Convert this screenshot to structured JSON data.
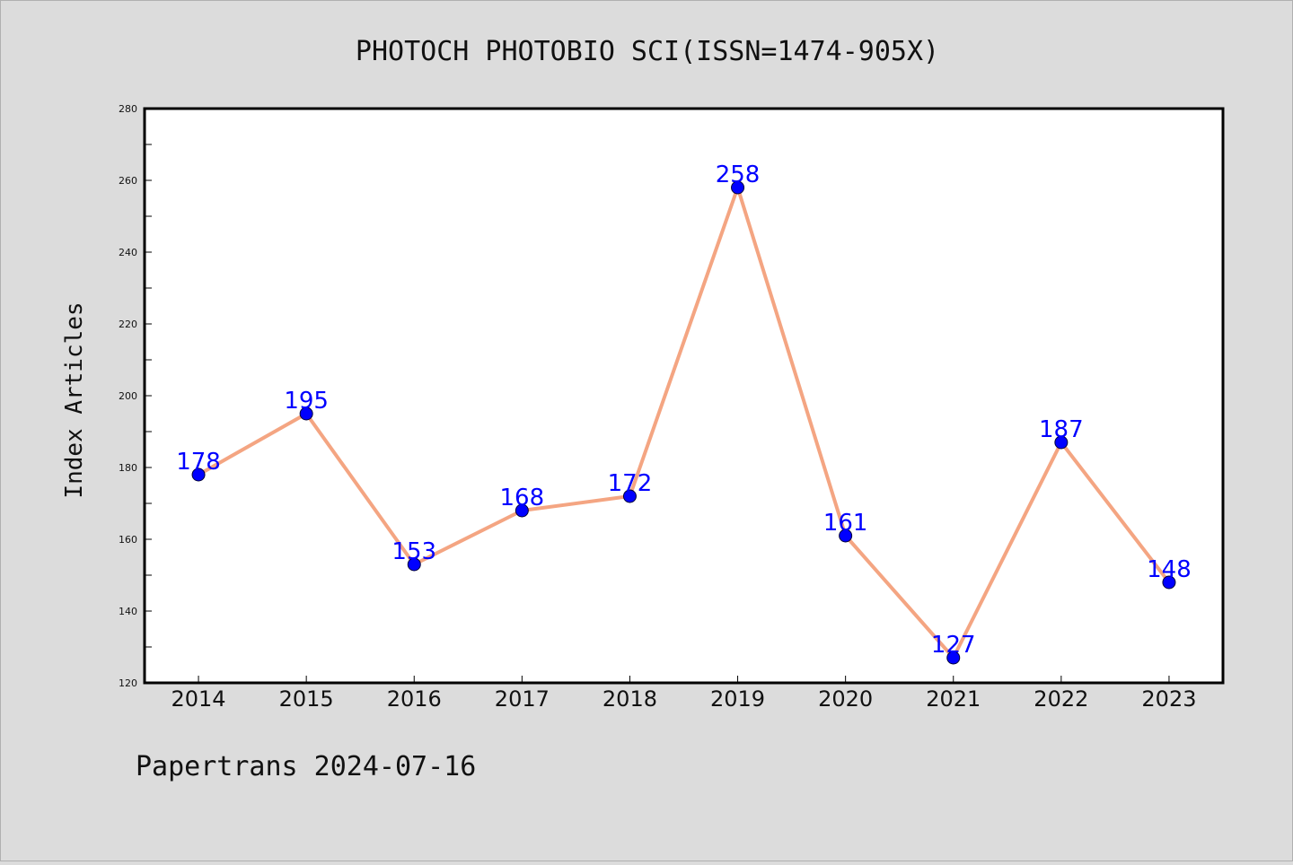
{
  "chart_data": {
    "type": "line",
    "title": "PHOTOCH PHOTOBIO SCI(ISSN=1474-905X)",
    "xlabel": "",
    "ylabel": "Index Articles",
    "categories": [
      "2014",
      "2015",
      "2016",
      "2017",
      "2018",
      "2019",
      "2020",
      "2021",
      "2022",
      "2023"
    ],
    "series": [
      {
        "values": [
          178,
          195,
          153,
          168,
          172,
          258,
          161,
          127,
          187,
          148
        ]
      }
    ],
    "ylim": [
      120,
      280
    ],
    "yticks": [
      120,
      140,
      160,
      180,
      200,
      220,
      240,
      260,
      280
    ],
    "grid": false,
    "data_labels": true,
    "line_color": "#f4a582",
    "marker_color": "#0000ff",
    "label_color": "#0000ff",
    "background_color": "#dcdcdc",
    "plot_background": "#ffffff"
  },
  "footer": "Papertrans 2024-07-16"
}
